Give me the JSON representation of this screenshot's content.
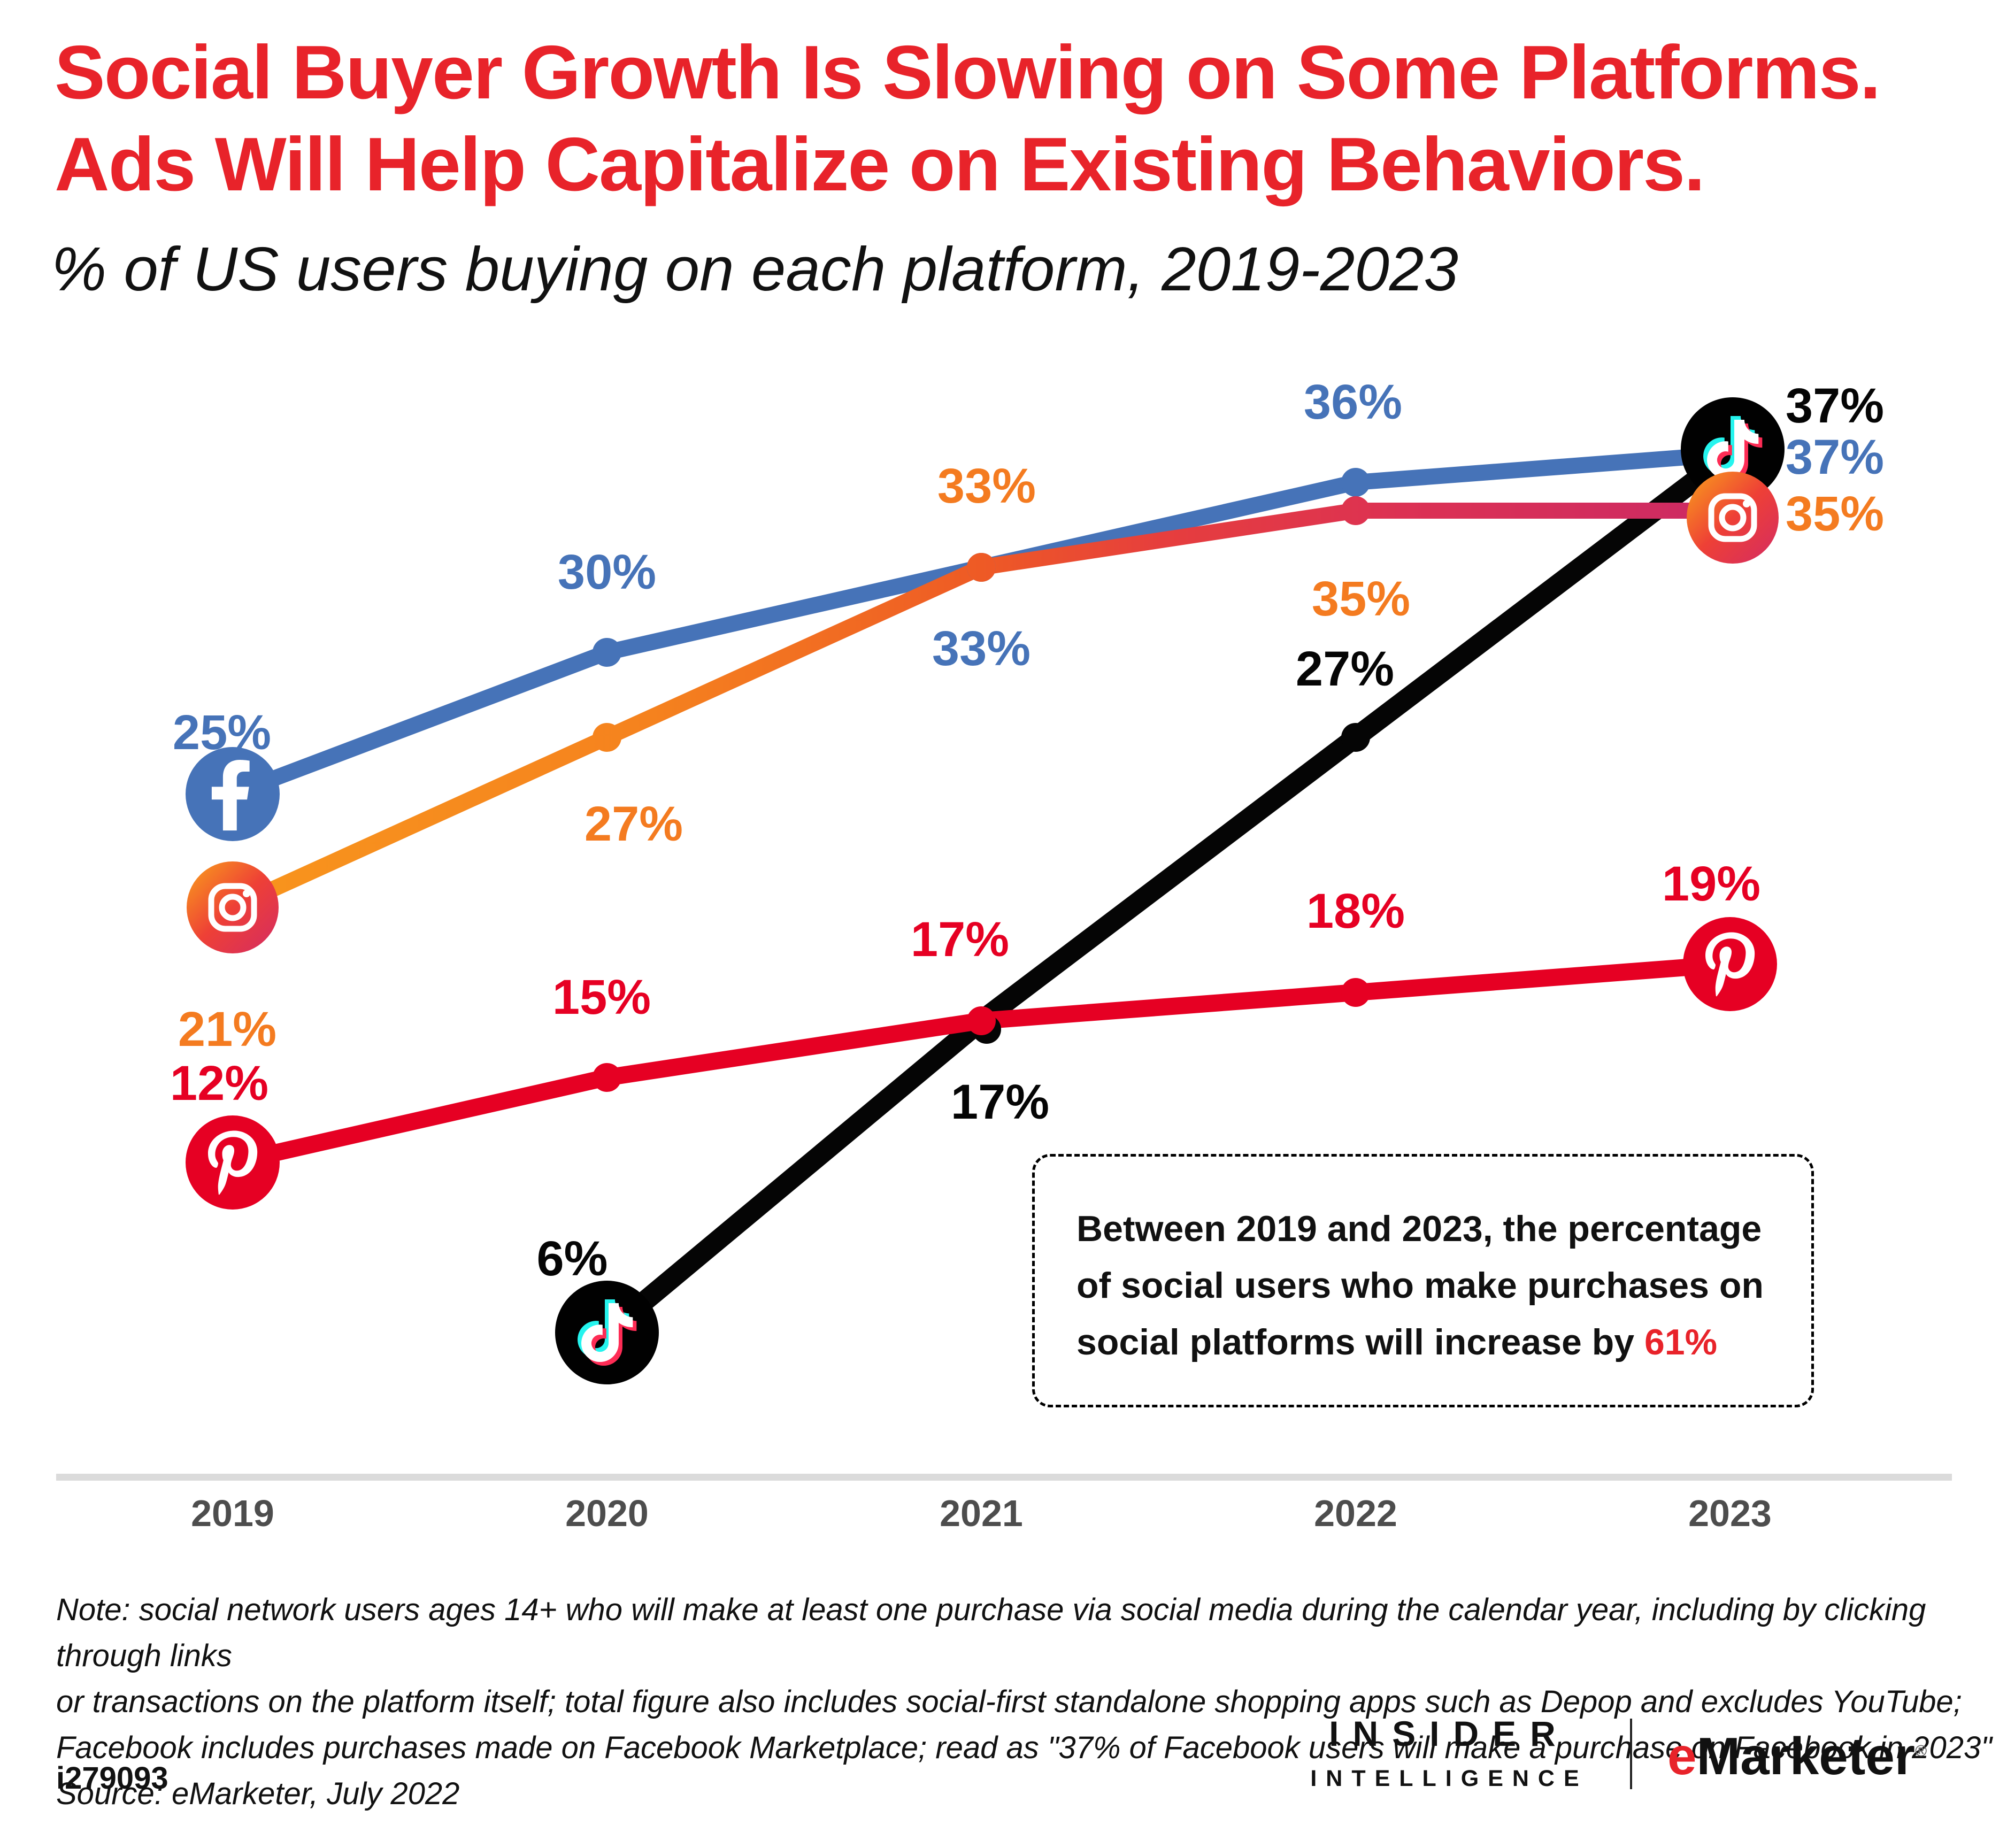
{
  "header": {
    "title_line1": "Social Buyer Growth Is Slowing on Some Platforms.",
    "title_line2": "Ads Will Help Capitalize on Existing Behaviors.",
    "subtitle": "% of US users buying on each platform, 2019-2023"
  },
  "chart_data": {
    "type": "line",
    "title": "Social Buyer Growth Is Slowing on Some Platforms. Ads Will Help Capitalize on Existing Behaviors.",
    "subtitle": "% of US users buying on each platform, 2019-2023",
    "categories": [
      "2019",
      "2020",
      "2021",
      "2022",
      "2023"
    ],
    "unit": "%",
    "ylim": [
      0,
      42
    ],
    "grid": false,
    "legend": "platform icons drawn on line endpoints",
    "series": [
      {
        "name": "Facebook",
        "color": "#4673B8",
        "icon": "facebook",
        "values": [
          25,
          30,
          33,
          36,
          37
        ],
        "icon_at": [
          0
        ],
        "label_offsets": [
          [
            -20,
            -115
          ],
          [
            0,
            -150
          ],
          [
            0,
            152
          ],
          [
            -5,
            -150
          ],
          [
            196,
            6
          ]
        ]
      },
      {
        "name": "TikTok",
        "color": "#050505",
        "icon": "tiktok",
        "values": [
          null,
          6,
          17,
          27,
          37
        ],
        "icon_at": [
          1,
          4
        ],
        "icon_offsets": {
          "4": [
            5,
            -9
          ]
        },
        "dot_offsets": {
          "2": [
            10,
            16
          ]
        },
        "label_offsets": [
          null,
          [
            -65,
            -138
          ],
          [
            35,
            152
          ],
          [
            -20,
            -128
          ],
          [
            196,
            -90
          ]
        ]
      },
      {
        "name": "Pinterest",
        "color": "#E60023",
        "icon": "pinterest",
        "values": [
          12,
          15,
          17,
          18,
          19
        ],
        "icon_at": [
          0,
          4
        ],
        "label_offsets": [
          [
            -25,
            -148
          ],
          [
            -10,
            -150
          ],
          [
            -40,
            -152
          ],
          [
            0,
            -152
          ],
          [
            -35,
            -150
          ]
        ]
      },
      {
        "name": "Instagram",
        "color": "gradient",
        "icon": "instagram",
        "label_color": "#F47B20",
        "values": [
          21,
          27,
          33,
          35,
          35
        ],
        "icon_at": [
          0,
          4
        ],
        "icon_offsets": {
          "4": [
            5,
            13
          ]
        },
        "label_offsets": [
          [
            -10,
            228
          ],
          [
            50,
            162
          ],
          [
            10,
            -152
          ],
          [
            10,
            165
          ],
          [
            196,
            6
          ]
        ]
      }
    ],
    "instagram_gradient": [
      "#F8951D",
      "#F5821E",
      "#EE5A25",
      "#E63E3D",
      "#DC3153",
      "#CC2A64"
    ]
  },
  "callout": {
    "line1": "Between 2019 and 2023, the percentage",
    "line2": "of social users who make purchases on",
    "line3_prefix": "social platforms will increase by ",
    "line3_highlight": "61%"
  },
  "notes": {
    "lines": [
      "Note: social network users ages 14+ who will make at least one purchase via social media during the calendar year, including by clicking through links",
      "or transactions on the platform itself; total figure also includes social-first standalone shopping apps such as Depop and excludes YouTube;",
      "Facebook includes purchases made on Facebook Marketplace; read as \"37% of Facebook users will make a purchase on Facebook in 2023\""
    ],
    "source": "Source: eMarketer, July 2022"
  },
  "footer": {
    "chart_id": "i279093",
    "brand_line1": "INSIDER",
    "brand_line2": "INTELLIGENCE",
    "emarketer_e": "e",
    "emarketer_rest": "Marketer",
    "registered": "®"
  },
  "colors": {
    "title_red": "#E8232A",
    "facebook_blue": "#4673B8",
    "pinterest_red": "#E60023",
    "tiktok_black": "#050505",
    "instagram_orange_label": "#F47B20",
    "axis_gray": "#DBDBDB",
    "year_gray": "#4D4D4D"
  }
}
